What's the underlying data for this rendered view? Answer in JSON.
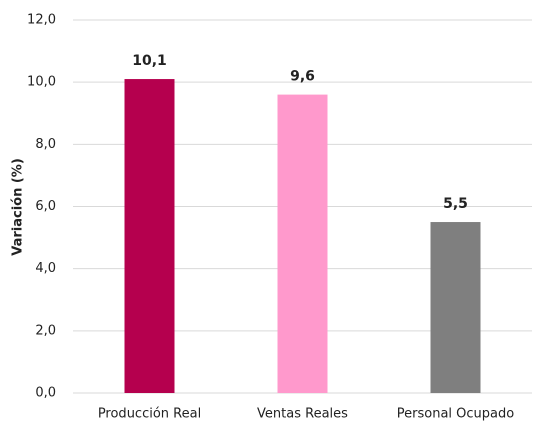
{
  "chart_data": {
    "type": "bar",
    "ylabel": "Variación (%)",
    "categories": [
      "Producción Real",
      "Ventas Reales",
      "Personal Ocupado"
    ],
    "values": [
      10.1,
      9.6,
      5.5
    ],
    "value_labels": [
      "10,1",
      "9,6",
      "5,5"
    ],
    "colors": [
      "#b5004e",
      "#ff99cc",
      "#7f7f7f"
    ],
    "ylim": [
      0,
      12
    ],
    "yticks": [
      {
        "value": 0,
        "label": "0,0"
      },
      {
        "value": 2,
        "label": "2,0"
      },
      {
        "value": 4,
        "label": "4,0"
      },
      {
        "value": 6,
        "label": "6,0"
      },
      {
        "value": 8,
        "label": "8,0"
      },
      {
        "value": 10,
        "label": "10,0"
      },
      {
        "value": 12,
        "label": "12,0"
      }
    ],
    "grid": true
  }
}
